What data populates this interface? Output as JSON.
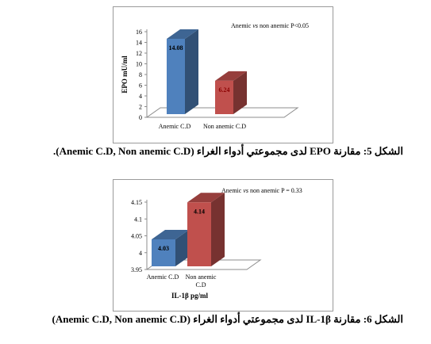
{
  "chart_data": [
    {
      "type": "bar",
      "categories": [
        "Anemic C.D",
        "Non anemic C.D"
      ],
      "values": [
        14.08,
        6.24
      ],
      "value_labels": [
        "14.08",
        "6.24"
      ],
      "bar_colors": [
        "#4f81bd",
        "#c0504d"
      ],
      "label_colors": [
        "#000000",
        "#8b0000"
      ],
      "ylabel": "EPO mU/ml",
      "xlabel": "",
      "ylim": [
        0,
        16
      ],
      "yticks": [
        "0",
        "2",
        "4",
        "6",
        "8",
        "10",
        "12",
        "14",
        "16"
      ],
      "annotation": "Anemic  vs non anemic P<0.05",
      "grid": false
    },
    {
      "type": "bar",
      "categories": [
        "Anemic C.D",
        "Non anemic C.D"
      ],
      "values": [
        4.03,
        4.14
      ],
      "value_labels": [
        "4.03",
        "4.14"
      ],
      "bar_colors": [
        "#4f81bd",
        "#c0504d"
      ],
      "label_colors": [
        "#000000",
        "#000000"
      ],
      "ylabel": "",
      "xlabel": "IL-1β pg/ml",
      "ylim": [
        3.95,
        4.15
      ],
      "yticks": [
        "3.95",
        "4",
        "4.05",
        "4.1",
        "4.15"
      ],
      "annotation": "Anemic  vs non anemic P = 0.33",
      "grid": false
    }
  ],
  "captions": {
    "figure5": "الشكل 5: مقارنة EPO لدى مجموعتي أدواء الغراء (Anemic C.D, Non anemic C.D).",
    "figure6": "الشكل 6: مقارنة IL-1β لدى مجموعتي أدواء الغراء (Anemic C.D, Non anemic C.D)"
  }
}
